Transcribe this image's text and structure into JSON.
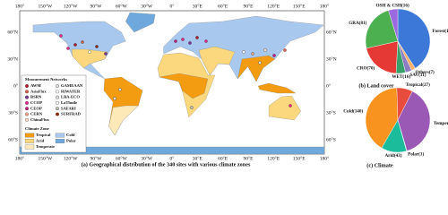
{
  "map": {
    "caption": "(a) Geographical distribution of the 340 sites with various climate zones",
    "lat_labels": [
      "60°N",
      "30°N",
      "0°",
      "30°S",
      "60°S"
    ],
    "lon_labels": [
      "180°",
      "150°W",
      "120°W",
      "90°W",
      "60°W",
      "30°W",
      "0°",
      "30°E",
      "60°E",
      "90°E",
      "120°E",
      "150°E",
      "180°"
    ],
    "networks": {
      "title": "Measurement Networks",
      "items": [
        "AWM",
        "AsiaFlux",
        "BSRN",
        "CCOP",
        "CEOP",
        "CERN",
        "ChinaFlux",
        "GAMEAAN",
        "HiWATER",
        "LBA-ECO",
        "LaThuile",
        "SAFARI",
        "SURFRAD"
      ],
      "colors": [
        "#b2182b",
        "#d6604d",
        "#7b3294",
        "#e7298a",
        "#c51b7d",
        "#f4a582",
        "#fddbc7",
        "#e0e0e0",
        "#ffffff",
        "#d9d9d9",
        "#f7f7f7",
        "#bababa",
        "#8c2d04"
      ]
    },
    "climate_zone": {
      "title": "Climate Zone",
      "items": [
        "Tropical",
        "Cold",
        "Arid",
        "Polar",
        "Temperate"
      ],
      "colors": [
        "#f39c12",
        "#a9c8ee",
        "#fbd77e",
        "#6fa8dc",
        "#fde9b8"
      ]
    }
  },
  "chart_data": [
    {
      "type": "pie",
      "title": "(b) Land cover",
      "values": [
        139,
        7,
        11,
        16,
        70,
        81,
        16
      ],
      "value_labels": [
        "Forest(139)",
        "Others(7)",
        "SAV(11)",
        "WET(16)",
        "CRO(70)",
        "GRA(81)",
        "OSH & CSH(16)"
      ],
      "colors": [
        "#3b78d8",
        "#f6b26b",
        "#8e7cc3",
        "#38a169",
        "#e53935",
        "#4caf50",
        "#9c6ade"
      ]
    },
    {
      "type": "pie",
      "title": "(c) Climate",
      "values": [
        140,
        27,
        129,
        1,
        43
      ],
      "value_labels": [
        "Cold(140)",
        "Tropical(27)",
        "Temperate(129)",
        "Polar(1)",
        "Arid(43)"
      ],
      "colors": [
        "#f7931e",
        "#e84c3d",
        "#9b59b6",
        "#3498db",
        "#1abc9c"
      ]
    }
  ]
}
